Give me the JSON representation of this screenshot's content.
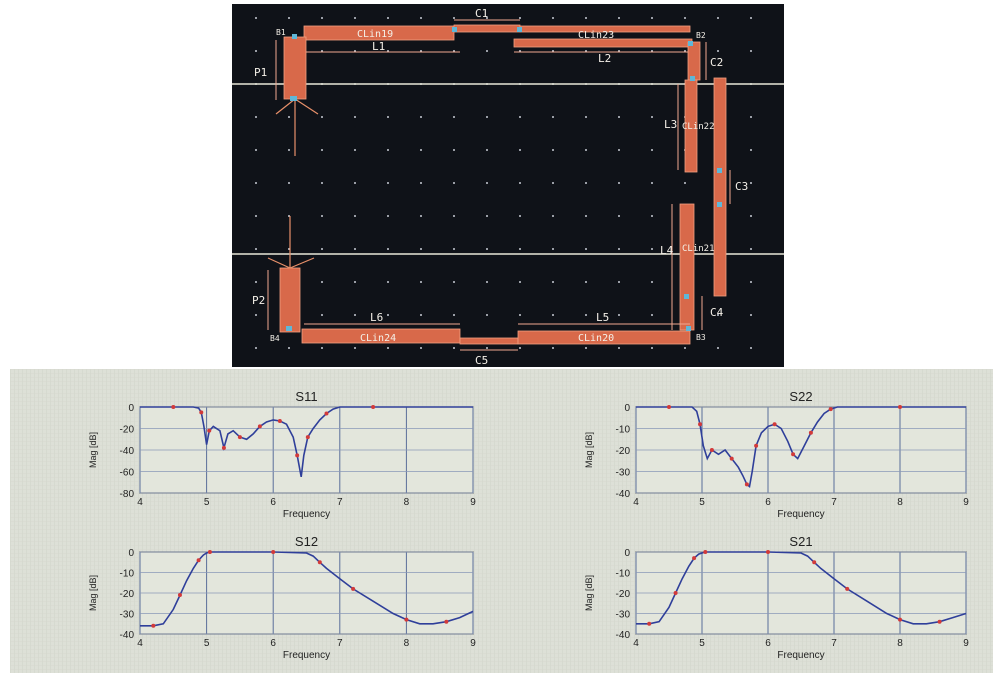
{
  "layout": {
    "line_labels": [
      "CLin19",
      "CLin23",
      "CLin22",
      "CLin21",
      "CLin24",
      "CLin20"
    ],
    "dims": [
      "C1",
      "C2",
      "C3",
      "C4",
      "C5",
      "L1",
      "L2",
      "L3",
      "L4",
      "L5",
      "L6",
      "P1",
      "P2"
    ],
    "ports": [
      "B1",
      "B2",
      "B3",
      "B4"
    ]
  },
  "chart_data": [
    {
      "type": "line",
      "title": "S11",
      "xlabel": "Frequency",
      "ylabel": "Mag [dB]",
      "xlim": [
        4,
        9
      ],
      "ylim": [
        -80,
        0
      ],
      "xticks": [
        "4",
        "5",
        "6",
        "7",
        "8",
        "9"
      ],
      "yticks": [
        "0",
        "-20",
        "-40",
        "-60",
        "-80"
      ],
      "x": [
        4.0,
        4.5,
        4.8,
        4.88,
        4.92,
        4.96,
        5.0,
        5.04,
        5.1,
        5.2,
        5.26,
        5.32,
        5.4,
        5.5,
        5.6,
        5.7,
        5.8,
        5.9,
        6.0,
        6.1,
        6.2,
        6.3,
        6.36,
        6.42,
        6.46,
        6.52,
        6.6,
        6.7,
        6.8,
        6.9,
        7.0,
        7.5,
        8.0,
        9.0
      ],
      "series": [
        {
          "values": [
            0,
            0,
            0,
            -1,
            -5,
            -18,
            -35,
            -22,
            -18,
            -22,
            -38,
            -25,
            -22,
            -28,
            -30,
            -25,
            -18,
            -14,
            -12,
            -13,
            -16,
            -28,
            -45,
            -65,
            -45,
            -28,
            -20,
            -12,
            -6,
            -2,
            0,
            0,
            0,
            0
          ]
        }
      ]
    },
    {
      "type": "line",
      "title": "S22",
      "xlabel": "Frequency",
      "ylabel": "Mag [dB]",
      "xlim": [
        4,
        9
      ],
      "ylim": [
        -40,
        0
      ],
      "xticks": [
        "4",
        "5",
        "6",
        "7",
        "8",
        "9"
      ],
      "yticks": [
        "0",
        "-10",
        "-20",
        "-30",
        "-40"
      ],
      "x": [
        4.0,
        4.5,
        4.85,
        4.92,
        4.97,
        5.02,
        5.08,
        5.15,
        5.25,
        5.35,
        5.45,
        5.55,
        5.62,
        5.68,
        5.72,
        5.76,
        5.82,
        5.9,
        6.0,
        6.1,
        6.2,
        6.3,
        6.38,
        6.45,
        6.55,
        6.65,
        6.75,
        6.85,
        6.95,
        7.05,
        7.5,
        8.0,
        9.0
      ],
      "series": [
        {
          "values": [
            0,
            0,
            0,
            -2,
            -8,
            -18,
            -24,
            -20,
            -22,
            -20,
            -24,
            -28,
            -32,
            -36,
            -37,
            -30,
            -18,
            -12,
            -9,
            -8,
            -10,
            -16,
            -22,
            -24,
            -18,
            -12,
            -7,
            -3,
            -1,
            0,
            0,
            0,
            0
          ]
        }
      ]
    },
    {
      "type": "line",
      "title": "S12",
      "xlabel": "Frequency",
      "ylabel": "Mag [dB]",
      "xlim": [
        4,
        9
      ],
      "ylim": [
        -40,
        0
      ],
      "xticks": [
        "4",
        "5",
        "6",
        "7",
        "8",
        "9"
      ],
      "yticks": [
        "0",
        "-10",
        "-20",
        "-30",
        "-40"
      ],
      "x": [
        4.0,
        4.2,
        4.35,
        4.5,
        4.6,
        4.7,
        4.8,
        4.88,
        4.95,
        5.0,
        5.05,
        5.2,
        5.5,
        6.0,
        6.5,
        6.6,
        6.7,
        6.8,
        7.0,
        7.2,
        7.5,
        7.8,
        8.0,
        8.2,
        8.4,
        8.6,
        8.8,
        9.0
      ],
      "series": [
        {
          "values": [
            -36,
            -36,
            -35,
            -28,
            -21,
            -14,
            -8,
            -4,
            -1.5,
            -0.5,
            0,
            0,
            0,
            0,
            -0.5,
            -2,
            -5,
            -8,
            -13,
            -18,
            -24,
            -30,
            -33,
            -35,
            -35,
            -34,
            -32,
            -29
          ]
        }
      ]
    },
    {
      "type": "line",
      "title": "S21",
      "xlabel": "Frequency",
      "ylabel": "Mag [dB]",
      "xlim": [
        4,
        9
      ],
      "ylim": [
        -40,
        0
      ],
      "xticks": [
        "4",
        "5",
        "6",
        "7",
        "8",
        "9"
      ],
      "yticks": [
        "0",
        "-10",
        "-20",
        "-30",
        "-40"
      ],
      "x": [
        4.0,
        4.2,
        4.35,
        4.5,
        4.6,
        4.7,
        4.8,
        4.88,
        4.95,
        5.0,
        5.05,
        5.2,
        5.5,
        6.0,
        6.5,
        6.6,
        6.7,
        6.8,
        7.0,
        7.2,
        7.5,
        7.8,
        8.0,
        8.2,
        8.4,
        8.6,
        8.8,
        9.0
      ],
      "series": [
        {
          "values": [
            -35,
            -35,
            -34,
            -27,
            -20,
            -13,
            -7,
            -3,
            -1,
            -0.5,
            0,
            0,
            0,
            0,
            -0.5,
            -2,
            -5,
            -8,
            -13,
            -18,
            -24,
            -30,
            -33,
            -35,
            -35,
            -34,
            -32,
            -30
          ]
        }
      ]
    }
  ]
}
